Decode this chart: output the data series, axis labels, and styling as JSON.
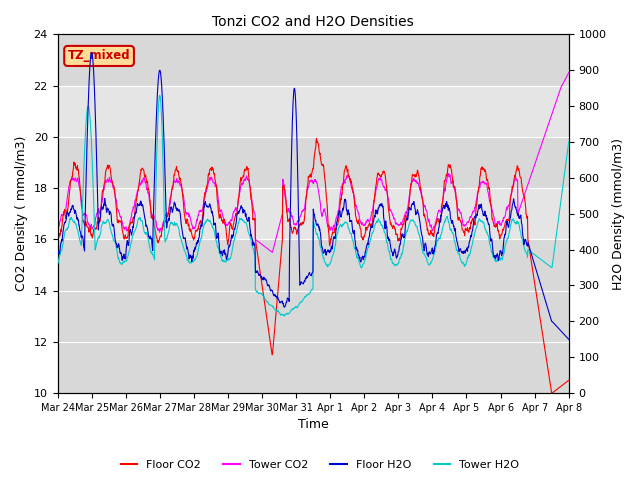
{
  "title": "Tonzi CO2 and H2O Densities",
  "xlabel": "Time",
  "ylabel_left": "CO2 Density ( mmol/m3)",
  "ylabel_right": "H2O Density (mmol/m3)",
  "ylim_left": [
    10,
    24
  ],
  "ylim_right": [
    0,
    1000
  ],
  "yticks_left": [
    10,
    12,
    14,
    16,
    18,
    20,
    22,
    24
  ],
  "yticks_right": [
    0,
    100,
    200,
    300,
    400,
    500,
    600,
    700,
    800,
    900,
    1000
  ],
  "xtick_labels": [
    "Mar 24",
    "Mar 25",
    "Mar 26",
    "Mar 27",
    "Mar 28",
    "Mar 29",
    "Mar 30",
    "Mar 31",
    "Apr 1",
    "Apr 2",
    "Apr 3",
    "Apr 4",
    "Apr 5",
    "Apr 6",
    "Apr 7",
    "Apr 8"
  ],
  "annotation_text": "TZ_mixed",
  "annotation_color": "#cc0000",
  "annotation_bg": "#ffdd99",
  "shaded_region_light": [
    14,
    20
  ],
  "shaded_region_dark": [
    12,
    14
  ],
  "colors": {
    "floor_co2": "#ff0000",
    "tower_co2": "#ff00ff",
    "floor_h2o": "#0000cc",
    "tower_h2o": "#00cccc"
  },
  "bg_light": "#d8d8d8",
  "bg_white": "#f0f0f0",
  "n_points": 1440
}
